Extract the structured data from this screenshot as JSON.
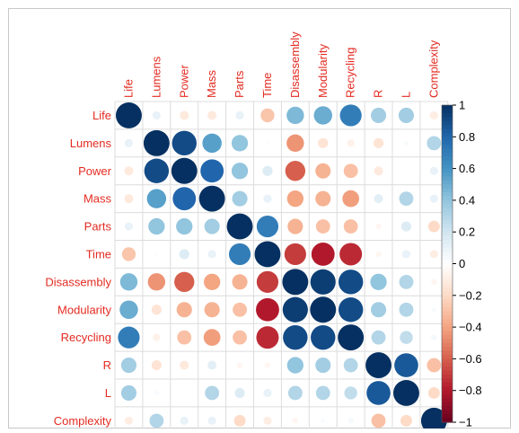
{
  "chart_data": {
    "type": "heatmap",
    "variables": [
      "Life",
      "Lumens",
      "Power",
      "Mass",
      "Parts",
      "Time",
      "Disassembly",
      "Modularity",
      "Recycling",
      "R",
      "L",
      "Complexity"
    ],
    "matrix": [
      [
        1.0,
        0.1,
        -0.12,
        -0.12,
        0.1,
        -0.28,
        0.45,
        0.5,
        0.7,
        0.35,
        0.35,
        -0.1
      ],
      [
        0.1,
        1.0,
        0.9,
        0.55,
        0.4,
        0.02,
        -0.45,
        -0.15,
        -0.08,
        -0.15,
        0.03,
        0.3
      ],
      [
        -0.12,
        0.9,
        1.0,
        0.8,
        0.4,
        0.15,
        -0.6,
        -0.35,
        -0.3,
        -0.12,
        0.0,
        0.1
      ],
      [
        -0.12,
        0.55,
        0.8,
        1.0,
        0.35,
        0.1,
        -0.4,
        -0.35,
        -0.42,
        0.12,
        0.3,
        0.1
      ],
      [
        0.1,
        0.4,
        0.4,
        0.35,
        1.0,
        0.7,
        -0.35,
        -0.3,
        -0.3,
        -0.05,
        0.15,
        -0.2
      ],
      [
        -0.28,
        0.02,
        0.15,
        0.1,
        0.7,
        1.0,
        -0.7,
        -0.8,
        -0.75,
        -0.05,
        0.1,
        -0.1
      ],
      [
        0.45,
        -0.45,
        -0.6,
        -0.4,
        -0.35,
        -0.7,
        1.0,
        0.95,
        0.9,
        0.4,
        0.3,
        -0.05
      ],
      [
        0.5,
        -0.15,
        -0.35,
        -0.35,
        -0.3,
        -0.8,
        0.95,
        1.0,
        0.9,
        0.35,
        0.3,
        0.03
      ],
      [
        0.7,
        -0.08,
        -0.3,
        -0.42,
        -0.3,
        -0.75,
        0.9,
        0.9,
        1.0,
        0.3,
        0.25,
        0.05
      ],
      [
        0.35,
        -0.15,
        -0.12,
        0.12,
        -0.05,
        -0.05,
        0.4,
        0.35,
        0.3,
        1.0,
        0.85,
        -0.3
      ],
      [
        0.35,
        0.03,
        0.0,
        0.3,
        0.15,
        0.1,
        0.3,
        0.3,
        0.25,
        0.85,
        1.0,
        -0.2
      ],
      [
        -0.1,
        0.3,
        0.1,
        0.1,
        -0.2,
        -0.1,
        -0.05,
        0.03,
        0.05,
        -0.3,
        -0.2,
        1.0
      ]
    ],
    "colorbar_ticks": [
      "1",
      "0.8",
      "0.6",
      "0.4",
      "0.2",
      "0",
      "−0.2",
      "−0.4",
      "−0.6",
      "−0.8",
      "−1"
    ],
    "color_range": [
      -1,
      1
    ],
    "colors": {
      "positive": "#053061",
      "neutral": "#ffffff",
      "negative": "#67001f",
      "label": "#e32b21"
    }
  }
}
